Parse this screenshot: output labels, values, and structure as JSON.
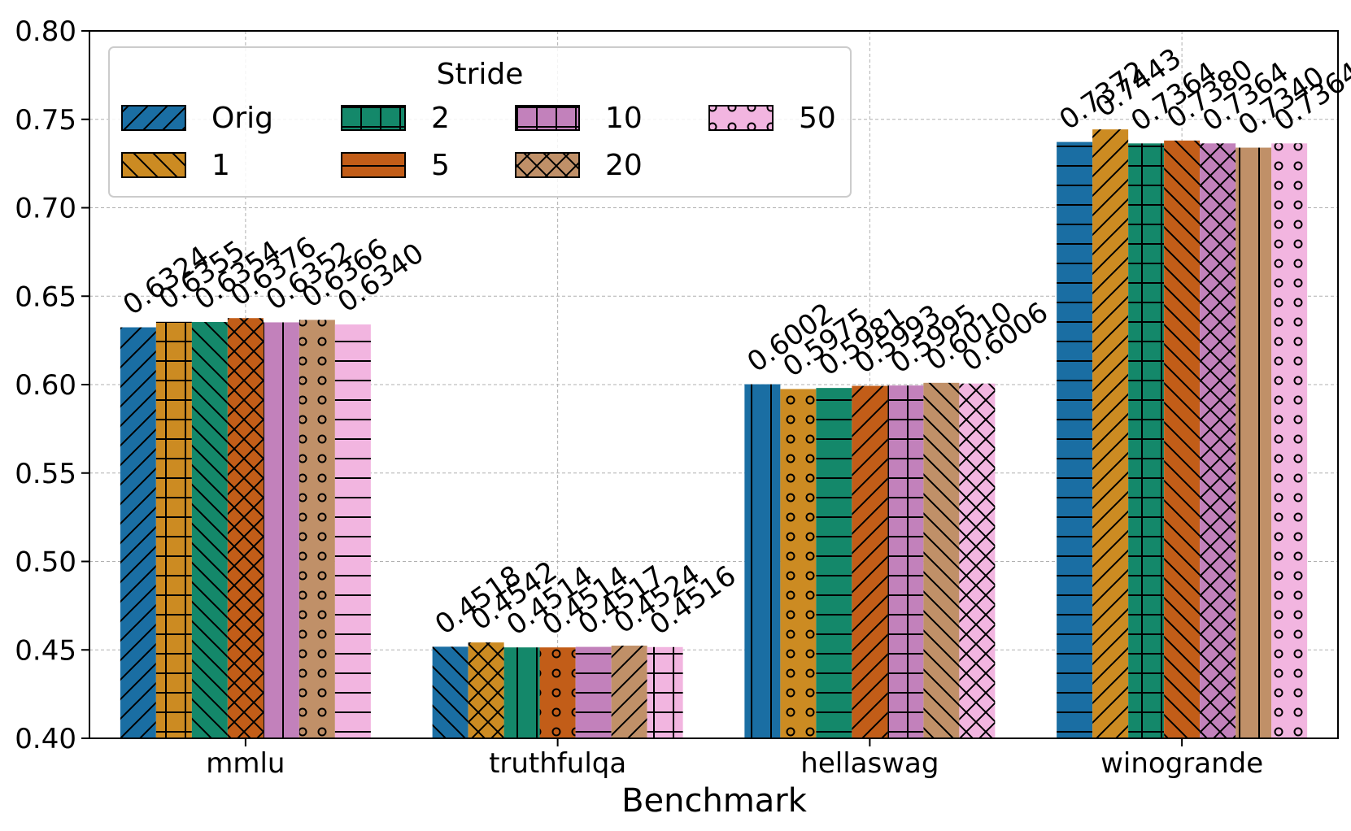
{
  "chart_data": {
    "type": "bar",
    "title": "",
    "xlabel": "Benchmark",
    "ylabel": "",
    "ylim": [
      0.4,
      0.8
    ],
    "yticks": [
      "0.40",
      "0.45",
      "0.50",
      "0.55",
      "0.60",
      "0.65",
      "0.70",
      "0.75",
      "0.80"
    ],
    "grid": true,
    "categories": [
      "mmlu",
      "truthfulqa",
      "hellaswag",
      "winogrande"
    ],
    "legend": {
      "title": "Stride",
      "placement": "upper-left",
      "columns": 4
    },
    "series": [
      {
        "name": "Orig",
        "color": "#1a6ea3",
        "values": [
          0.6324,
          0.4518,
          0.6002,
          0.7372
        ],
        "labels": [
          "0.6324",
          "0.4518",
          "0.6002",
          "0.7372"
        ]
      },
      {
        "name": "1",
        "color": "#cc8b22",
        "values": [
          0.6355,
          0.4542,
          0.5975,
          0.7443
        ],
        "labels": [
          "0.6355",
          "0.4542",
          "0.5975",
          "0.7443"
        ]
      },
      {
        "name": "2",
        "color": "#14886a",
        "values": [
          0.6354,
          0.4514,
          0.5981,
          0.7364
        ],
        "labels": [
          "0.6354",
          "0.4514",
          "0.5981",
          "0.7364"
        ]
      },
      {
        "name": "5",
        "color": "#c25d18",
        "values": [
          0.6376,
          0.4514,
          0.5993,
          0.738
        ],
        "labels": [
          "0.6376",
          "0.4514",
          "0.5993",
          "0.7380"
        ]
      },
      {
        "name": "10",
        "color": "#c281bb",
        "values": [
          0.6352,
          0.4517,
          0.5995,
          0.7364
        ],
        "labels": [
          "0.6352",
          "0.4517",
          "0.5995",
          "0.7364"
        ]
      },
      {
        "name": "20",
        "color": "#c09068",
        "values": [
          0.6366,
          0.4524,
          0.601,
          0.734
        ],
        "labels": [
          "0.6366",
          "0.4524",
          "0.6010",
          "0.7340"
        ]
      },
      {
        "name": "50",
        "color": "#f2b5e0",
        "values": [
          0.634,
          0.4516,
          0.6006,
          0.7364
        ],
        "labels": [
          "0.6340",
          "0.4516",
          "0.6006",
          "0.7364"
        ]
      }
    ],
    "hatch_names": [
      "slash",
      "backslash",
      "vertical",
      "horizontal",
      "grid",
      "cross",
      "dots"
    ],
    "hatch_assignment": [
      [
        "slash",
        "grid",
        "backslash",
        "cross",
        "vertical",
        "dots",
        "horizontal"
      ],
      [
        "backslash",
        "cross",
        "vertical",
        "dots",
        "horizontal",
        "slash",
        "grid"
      ],
      [
        "vertical",
        "dots",
        "horizontal",
        "slash",
        "grid",
        "backslash",
        "cross"
      ],
      [
        "horizontal",
        "slash",
        "grid",
        "backslash",
        "cross",
        "vertical",
        "dots"
      ]
    ],
    "legend_hatches": [
      "slash",
      "backslash",
      "grid",
      "horizontal",
      "grid",
      "cross",
      "dots"
    ]
  }
}
